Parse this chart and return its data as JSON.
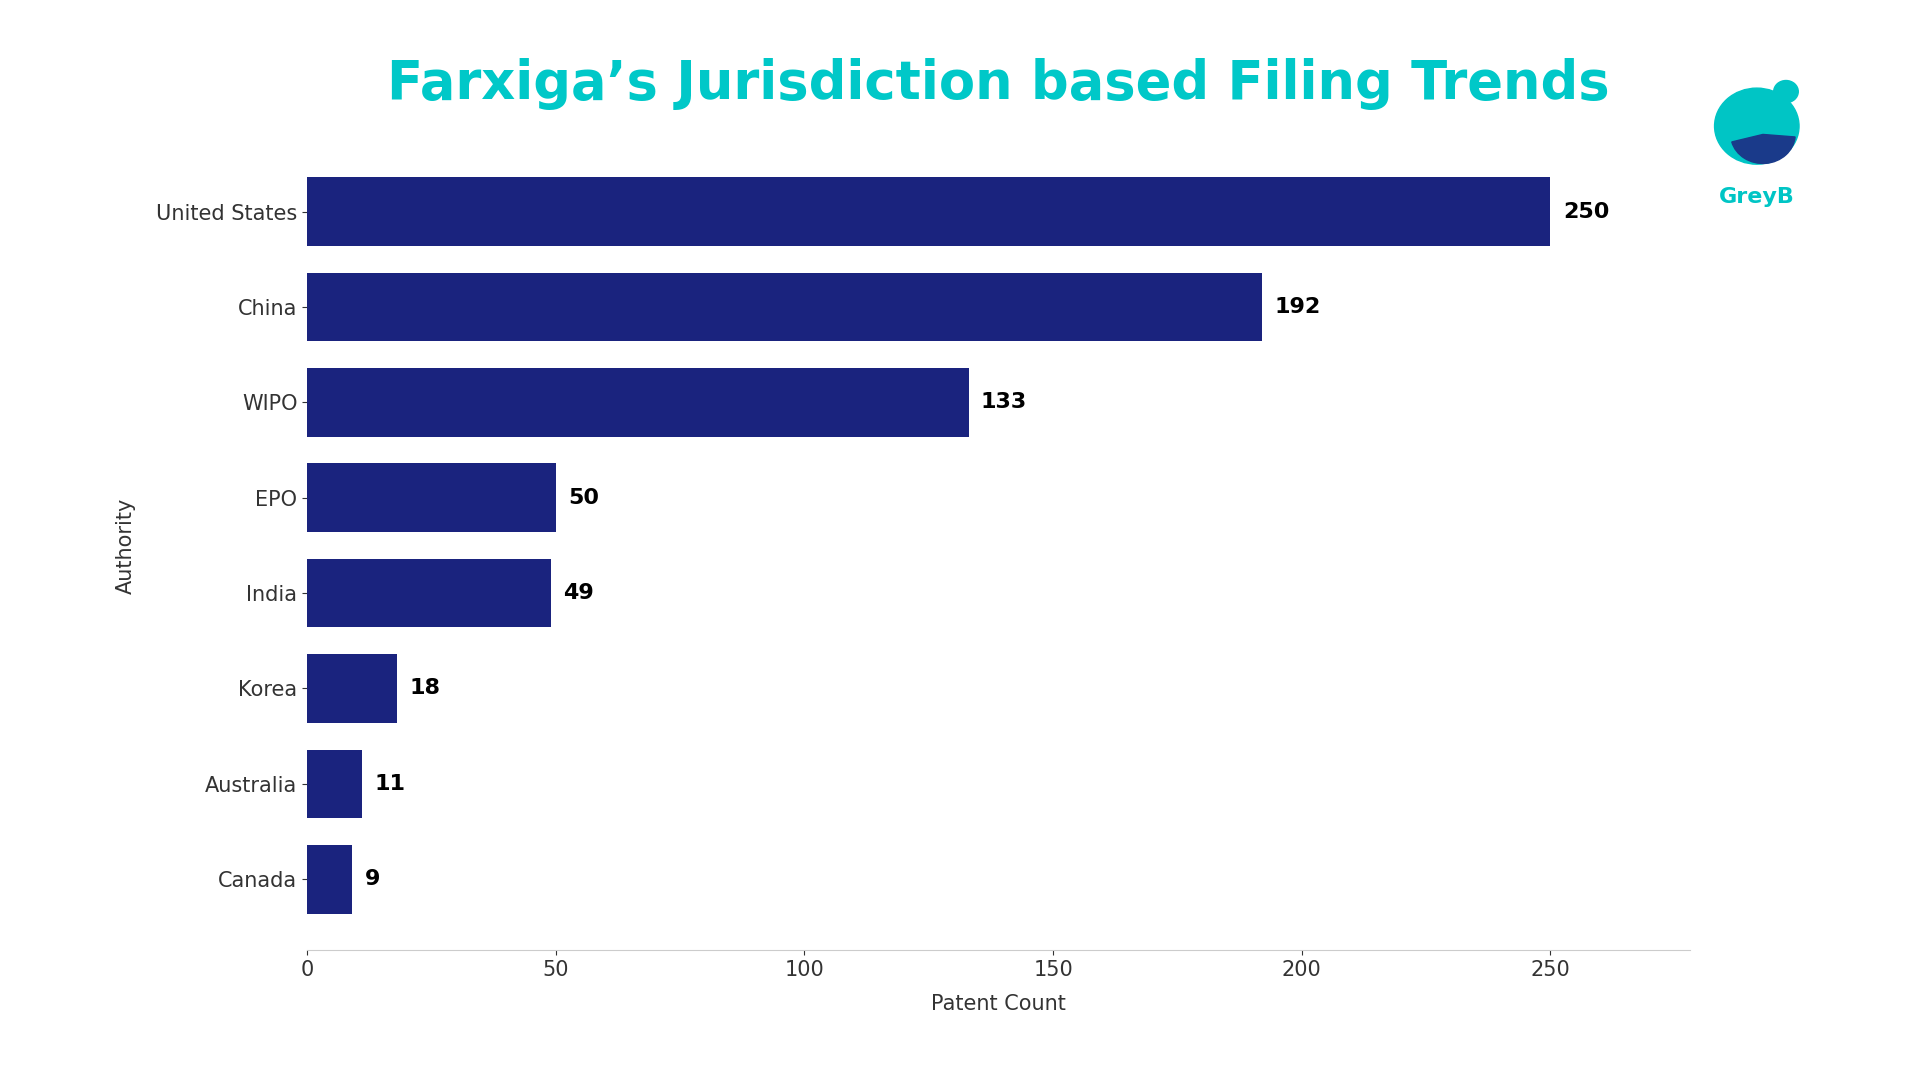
{
  "title": "Farxiga’s Jurisdiction based Filing Trends",
  "title_color": "#00C8C8",
  "xlabel": "Patent Count",
  "ylabel": "Authority",
  "categories": [
    "Canada",
    "Australia",
    "Korea",
    "India",
    "EPO",
    "WIPO",
    "China",
    "United States"
  ],
  "values": [
    9,
    11,
    18,
    49,
    50,
    133,
    192,
    250
  ],
  "bar_color": "#1a237e",
  "label_color": "#000000",
  "background_color": "#ffffff",
  "xticks": [
    0,
    50,
    100,
    150,
    200,
    250
  ],
  "xlim": [
    0,
    278
  ],
  "title_fontsize": 38,
  "axis_label_fontsize": 15,
  "tick_fontsize": 15,
  "value_fontsize": 16,
  "ylabel_fontsize": 15,
  "greyb_color": "#00C5C5",
  "greyb_dark": "#1a3a8a"
}
